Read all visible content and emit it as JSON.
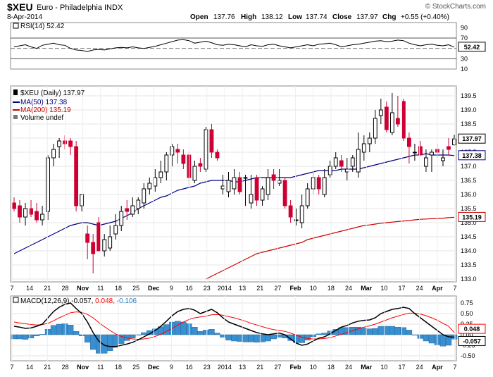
{
  "header": {
    "symbol": "$XEU",
    "description": "Euro - Philadelphia INDX",
    "watermark": "© StockCharts.com",
    "date": "8-Apr-2014",
    "open_label": "Open",
    "open": "137.76",
    "high_label": "High",
    "high": "138.12",
    "low_label": "Low",
    "low": "137.74",
    "close_label": "Close",
    "close": "137.97",
    "chg_label": "Chg",
    "chg": "+0.55 (+0.40%)"
  },
  "legend": {
    "rsi": "RSI(14) 52.42",
    "price": "$XEU (Daily) 137.97",
    "ma50": "MA(50) 137.38",
    "ma200": "MA(200) 135.19",
    "volume": "Volume undef",
    "macd_prefix": "MACD(12,26,9) -0.057,",
    "macd_signal": "0.048,",
    "macd_hist": "-0.106"
  },
  "colors": {
    "up": "#000000",
    "down": "#cc0033",
    "ma50": "#000080",
    "ma200": "#cc0000",
    "macd": "#000000",
    "signal": "#ff0000",
    "histogram": "#3a8fd0"
  },
  "x_labels": [
    "7",
    "14",
    "21",
    "28",
    "Nov",
    "11",
    "18",
    "25",
    "Dec",
    "9",
    "16",
    "23",
    "2014",
    "13",
    "21",
    "27",
    "Feb",
    "10",
    "18",
    "24",
    "Mar",
    "10",
    "17",
    "24",
    "Apr",
    "7"
  ],
  "chart_data": [
    {
      "type": "line",
      "name": "RSI",
      "title": "RSI(14) 52.42",
      "ylim": [
        10,
        100
      ],
      "yticks": [
        10,
        30,
        50,
        70,
        90
      ],
      "reference_lines": [
        30,
        70
      ],
      "last_value": 52.42,
      "y": [
        53,
        55,
        57,
        53,
        50,
        56,
        58,
        60,
        57,
        56,
        50,
        47,
        46,
        44,
        47,
        48,
        47,
        49,
        51,
        52,
        51,
        53,
        51,
        50,
        52,
        54,
        57,
        60,
        63,
        66,
        67,
        65,
        60,
        62,
        64,
        61,
        57,
        56,
        58,
        57,
        55,
        53,
        57,
        55,
        54,
        57,
        58,
        55,
        53,
        51,
        53,
        55,
        57,
        55,
        58,
        59,
        60,
        57,
        53,
        55,
        57,
        58,
        60,
        62,
        64,
        65,
        63,
        64,
        66,
        65,
        60,
        57,
        55,
        57,
        58,
        56,
        55,
        57,
        52.42
      ]
    },
    {
      "type": "candlestick",
      "name": "$XEU (Daily)",
      "title": "$XEU (Daily) 137.97",
      "ylim": [
        133.0,
        139.75
      ],
      "yticks": [
        133.0,
        133.5,
        134.0,
        134.5,
        135.0,
        135.5,
        136.0,
        136.5,
        137.0,
        137.5,
        138.0,
        138.5,
        139.0,
        139.5
      ],
      "last_labels": {
        "close": "137.97",
        "ma50": "137.38",
        "ma200": "135.19"
      },
      "x": [
        0,
        1,
        2,
        3,
        4,
        5,
        6,
        7,
        8,
        9,
        10,
        11,
        12,
        13,
        14,
        15,
        16,
        17,
        18,
        19,
        20,
        21,
        22,
        23,
        24,
        25,
        26,
        27,
        28,
        29,
        30,
        31,
        32,
        33,
        34,
        35,
        36,
        37,
        38,
        39,
        40,
        41,
        42,
        43,
        44,
        45,
        46,
        47,
        48,
        49,
        50,
        51,
        52,
        53,
        54,
        55,
        56,
        57,
        58,
        59,
        60,
        61,
        62,
        63,
        64,
        65,
        66,
        67,
        68,
        69,
        70,
        71,
        72,
        73,
        74,
        75,
        76,
        77,
        78
      ],
      "open": [
        135.7,
        135.6,
        135.2,
        135.5,
        135.4,
        135.1,
        135.4,
        137.3,
        137.7,
        137.9,
        137.9,
        137.7,
        135.6,
        134.6,
        134.3,
        135.0,
        134.0,
        134.1,
        134.6,
        134.9,
        135.5,
        135.3,
        135.5,
        135.7,
        136.2,
        136.3,
        136.6,
        136.8,
        137.4,
        137.6,
        137.4,
        137.4,
        136.5,
        137.1,
        136.9,
        138.3,
        137.5,
        136.2,
        136.1,
        136.2,
        136.6,
        136.6,
        135.7,
        136.6,
        135.8,
        136.0,
        136.7,
        136.4,
        136.5,
        135.6,
        135.1,
        135.0,
        135.6,
        136.2,
        136.6,
        136.0,
        136.7,
        137.0,
        137.2,
        136.8,
        137.0,
        136.8,
        137.5,
        137.8,
        138.0,
        138.8,
        139.1,
        138.2,
        138.7,
        139.3,
        138.0,
        137.5,
        137.7,
        137.0,
        137.4,
        137.6,
        137.2,
        137.7,
        137.76
      ],
      "high": [
        135.9,
        135.8,
        135.7,
        135.8,
        135.7,
        135.6,
        137.4,
        137.8,
        138.0,
        138.1,
        138.0,
        137.9,
        136.0,
        134.9,
        134.6,
        135.2,
        134.6,
        134.9,
        135.3,
        135.6,
        135.8,
        135.9,
        135.9,
        136.4,
        136.6,
        136.9,
        137.2,
        137.5,
        137.8,
        137.8,
        137.6,
        137.5,
        137.2,
        137.3,
        138.4,
        138.5,
        137.6,
        136.7,
        136.8,
        136.9,
        136.8,
        136.7,
        136.7,
        136.7,
        136.3,
        136.9,
        136.9,
        136.9,
        136.6,
        135.8,
        135.5,
        136.0,
        136.4,
        136.8,
        136.7,
        136.9,
        137.2,
        137.5,
        137.4,
        137.3,
        137.4,
        138.2,
        138.1,
        138.2,
        139.0,
        139.4,
        139.3,
        139.6,
        139.5,
        139.4,
        138.2,
        137.8,
        137.9,
        137.6,
        137.6,
        137.8,
        137.6,
        138.0,
        138.12
      ],
      "low": [
        135.4,
        135.0,
        134.9,
        135.2,
        135.0,
        134.9,
        135.1,
        137.0,
        137.3,
        137.6,
        137.4,
        135.4,
        135.4,
        133.7,
        133.2,
        134.0,
        133.8,
        134.0,
        134.4,
        134.7,
        135.1,
        135.2,
        135.3,
        135.5,
        136.0,
        136.1,
        136.4,
        136.5,
        137.0,
        137.1,
        136.9,
        136.3,
        136.4,
        136.8,
        136.8,
        137.3,
        137.2,
        136.0,
        135.9,
        136.0,
        136.0,
        135.6,
        135.5,
        135.6,
        135.6,
        135.8,
        136.2,
        136.3,
        135.5,
        135.0,
        134.9,
        134.8,
        135.5,
        136.0,
        136.0,
        135.9,
        136.6,
        136.9,
        136.8,
        136.5,
        136.8,
        136.6,
        137.2,
        137.5,
        137.8,
        138.5,
        138.2,
        138.1,
        138.4,
        137.9,
        137.1,
        137.2,
        137.4,
        136.8,
        136.8,
        137.3,
        137.0,
        137.4,
        137.74
      ],
      "close": [
        135.5,
        135.2,
        135.5,
        135.3,
        135.1,
        135.3,
        137.3,
        137.6,
        137.9,
        137.8,
        137.7,
        135.6,
        136.0,
        134.3,
        133.9,
        134.0,
        134.4,
        134.5,
        134.9,
        135.4,
        135.4,
        135.6,
        135.8,
        136.2,
        136.4,
        136.6,
        136.8,
        137.4,
        137.7,
        137.5,
        137.1,
        136.6,
        137.0,
        137.0,
        138.3,
        137.5,
        137.3,
        136.3,
        136.5,
        136.6,
        136.1,
        136.6,
        136.0,
        135.8,
        136.2,
        136.6,
        136.5,
        136.5,
        135.6,
        135.2,
        135.1,
        135.6,
        136.2,
        136.6,
        136.2,
        136.6,
        137.0,
        137.3,
        137.0,
        136.9,
        137.3,
        137.6,
        137.8,
        138.0,
        138.7,
        139.0,
        138.3,
        138.9,
        138.5,
        138.0,
        137.7,
        137.5,
        137.4,
        137.3,
        137.5,
        137.5,
        137.3,
        137.6,
        137.97
      ],
      "ma50": [
        133.9,
        134.0,
        134.1,
        134.2,
        134.3,
        134.4,
        134.5,
        134.6,
        134.7,
        134.8,
        134.9,
        134.95,
        135.0,
        135.0,
        134.95,
        134.9,
        134.95,
        135.0,
        135.05,
        135.15,
        135.25,
        135.35,
        135.5,
        135.6,
        135.7,
        135.8,
        135.9,
        135.95,
        136.05,
        136.15,
        136.2,
        136.25,
        136.3,
        136.4,
        136.45,
        136.5,
        136.5,
        136.5,
        136.5,
        136.45,
        136.45,
        136.5,
        136.55,
        136.6,
        136.6,
        136.6,
        136.6,
        136.6,
        136.6,
        136.6,
        136.65,
        136.7,
        136.75,
        136.8,
        136.85,
        136.85,
        136.85,
        136.85,
        136.9,
        136.9,
        136.9,
        136.9,
        136.95,
        137.0,
        137.05,
        137.1,
        137.15,
        137.2,
        137.25,
        137.3,
        137.35,
        137.4,
        137.4,
        137.45,
        137.4,
        137.4,
        137.4,
        137.4,
        137.38
      ],
      "ma200": [
        null,
        null,
        null,
        null,
        null,
        null,
        null,
        null,
        null,
        null,
        null,
        null,
        null,
        null,
        null,
        null,
        null,
        null,
        null,
        null,
        null,
        null,
        null,
        null,
        null,
        null,
        null,
        null,
        null,
        null,
        null,
        null,
        null,
        null,
        133.0,
        133.1,
        133.2,
        133.3,
        133.4,
        133.5,
        133.6,
        133.7,
        133.8,
        133.9,
        133.95,
        134.0,
        134.05,
        134.1,
        134.15,
        134.2,
        134.25,
        134.3,
        134.4,
        134.45,
        134.5,
        134.55,
        134.6,
        134.65,
        134.7,
        134.75,
        134.8,
        134.85,
        134.9,
        134.92,
        134.95,
        134.98,
        135.0,
        135.02,
        135.04,
        135.06,
        135.08,
        135.1,
        135.12,
        135.13,
        135.14,
        135.15,
        135.16,
        135.18,
        135.19
      ]
    },
    {
      "type": "line",
      "name": "MACD(12,26,9)",
      "title": "MACD(12,26,9) -0.057, 0.048, -0.106",
      "ylim": [
        -0.55,
        0.85
      ],
      "yticks": [
        -0.5,
        -0.25,
        0.0,
        0.25,
        0.5,
        0.75
      ],
      "last_labels": [
        "0.048",
        "-0.057"
      ],
      "series": [
        {
          "name": "MACD",
          "values": [
            0.2,
            0.18,
            0.15,
            0.16,
            0.2,
            0.25,
            0.4,
            0.55,
            0.65,
            0.72,
            0.75,
            0.62,
            0.5,
            0.3,
            0.05,
            -0.15,
            -0.25,
            -0.28,
            -0.28,
            -0.25,
            -0.22,
            -0.18,
            -0.12,
            -0.05,
            0.02,
            0.1,
            0.2,
            0.32,
            0.45,
            0.55,
            0.6,
            0.62,
            0.58,
            0.5,
            0.55,
            0.6,
            0.52,
            0.4,
            0.3,
            0.25,
            0.2,
            0.15,
            0.1,
            0.05,
            0.02,
            0.0,
            0.02,
            0.04,
            0.0,
            -0.1,
            -0.2,
            -0.25,
            -0.22,
            -0.15,
            -0.08,
            -0.05,
            0.02,
            0.1,
            0.18,
            0.22,
            0.28,
            0.32,
            0.34,
            0.35,
            0.4,
            0.5,
            0.55,
            0.6,
            0.62,
            0.65,
            0.62,
            0.5,
            0.4,
            0.3,
            0.2,
            0.1,
            0.0,
            -0.05,
            -0.057
          ]
        },
        {
          "name": "Signal",
          "values": [
            0.3,
            0.28,
            0.26,
            0.24,
            0.23,
            0.24,
            0.27,
            0.33,
            0.4,
            0.46,
            0.52,
            0.54,
            0.53,
            0.48,
            0.4,
            0.29,
            0.19,
            0.1,
            0.02,
            -0.04,
            -0.08,
            -0.1,
            -0.11,
            -0.1,
            -0.08,
            -0.04,
            0.01,
            0.08,
            0.15,
            0.23,
            0.3,
            0.36,
            0.4,
            0.42,
            0.44,
            0.47,
            0.48,
            0.46,
            0.43,
            0.4,
            0.36,
            0.32,
            0.27,
            0.23,
            0.19,
            0.15,
            0.12,
            0.1,
            0.08,
            0.04,
            -0.01,
            -0.06,
            -0.09,
            -0.1,
            -0.1,
            -0.09,
            -0.07,
            -0.03,
            0.01,
            0.05,
            0.1,
            0.14,
            0.18,
            0.21,
            0.25,
            0.3,
            0.35,
            0.4,
            0.44,
            0.48,
            0.51,
            0.51,
            0.49,
            0.45,
            0.4,
            0.34,
            0.27,
            0.2,
            0.048
          ]
        },
        {
          "name": "Histogram",
          "values": [
            -0.1,
            -0.1,
            -0.11,
            -0.08,
            -0.03,
            0.01,
            0.13,
            0.22,
            0.25,
            0.26,
            0.23,
            0.08,
            -0.03,
            -0.18,
            -0.35,
            -0.44,
            -0.44,
            -0.38,
            -0.3,
            -0.21,
            -0.14,
            -0.08,
            -0.01,
            0.05,
            0.1,
            0.14,
            0.19,
            0.24,
            0.3,
            0.32,
            0.3,
            0.26,
            0.18,
            0.08,
            0.11,
            0.13,
            0.04,
            -0.06,
            -0.13,
            -0.15,
            -0.16,
            -0.17,
            -0.17,
            -0.18,
            -0.17,
            -0.15,
            -0.1,
            -0.06,
            -0.08,
            -0.14,
            -0.19,
            -0.19,
            -0.13,
            -0.05,
            0.02,
            0.04,
            0.09,
            0.13,
            0.17,
            0.17,
            0.18,
            0.18,
            0.16,
            0.14,
            0.15,
            0.2,
            0.2,
            0.2,
            0.18,
            0.17,
            0.11,
            -0.01,
            -0.09,
            -0.15,
            -0.2,
            -0.24,
            -0.27,
            -0.25,
            -0.106
          ]
        }
      ]
    }
  ]
}
